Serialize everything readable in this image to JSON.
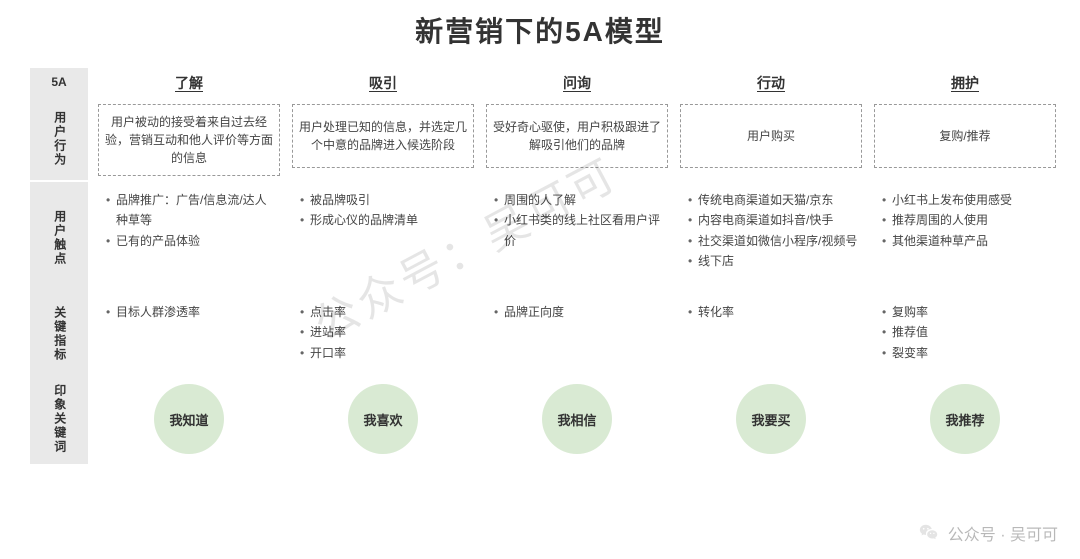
{
  "title": "新营销下的5A模型",
  "rowLabels": {
    "header": "5A",
    "behavior": "用户行为",
    "touchpoint": "用户触点",
    "metric": "关键指标",
    "keyword": "印象关键词"
  },
  "columns": [
    {
      "header": "了解",
      "behavior": "用户被动的接受着来自过去经验，营销互动和他人评价等方面的信息",
      "touchpoints": [
        "品牌推广：广告/信息流/达人种草等",
        "已有的产品体验"
      ],
      "metrics": [
        "目标人群渗透率"
      ],
      "keyword": "我知道"
    },
    {
      "header": "吸引",
      "behavior": "用户处理已知的信息，并选定几个中意的品牌进入候选阶段",
      "touchpoints": [
        "被品牌吸引",
        "形成心仪的品牌清单"
      ],
      "metrics": [
        "点击率",
        "进站率",
        "开口率"
      ],
      "keyword": "我喜欢"
    },
    {
      "header": "问询",
      "behavior": "受好奇心驱使，用户积极跟进了解吸引他们的品牌",
      "touchpoints": [
        "周围的人了解",
        "小红书类的线上社区看用户评价"
      ],
      "metrics": [
        "品牌正向度"
      ],
      "keyword": "我相信"
    },
    {
      "header": "行动",
      "behavior": "用户购买",
      "touchpoints": [
        "传统电商渠道如天猫/京东",
        "内容电商渠道如抖音/快手",
        "社交渠道如微信小程序/视频号",
        "线下店"
      ],
      "metrics": [
        "转化率"
      ],
      "keyword": "我要买"
    },
    {
      "header": "拥护",
      "behavior": "复购/推荐",
      "touchpoints": [
        "小红书上发布使用感受",
        "推荐周围的人使用",
        "其他渠道种草产品"
      ],
      "metrics": [
        "复购率",
        "推荐值",
        "裂变率"
      ],
      "keyword": "我推荐"
    }
  ],
  "style": {
    "circle_bg": "#d9ead3",
    "label_bg": "#e9e9e9",
    "dash_border": "#999999",
    "text_color": "#333333",
    "body_text": "#444444"
  },
  "watermark": {
    "center": "公众号：吴可可",
    "bottom_right": "公众号 · 吴可可"
  }
}
